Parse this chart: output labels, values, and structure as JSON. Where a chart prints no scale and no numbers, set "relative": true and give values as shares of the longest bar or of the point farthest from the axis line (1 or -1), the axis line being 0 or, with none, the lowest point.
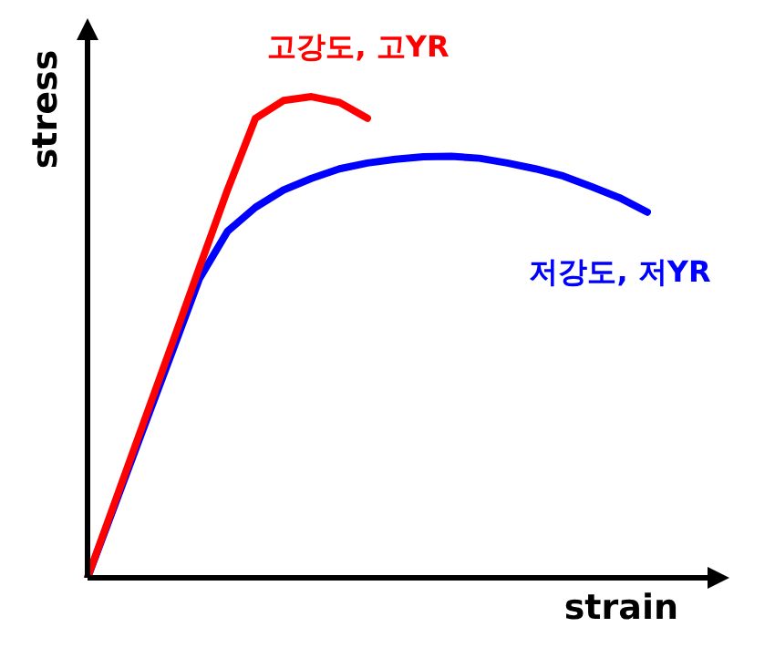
{
  "chart_data": {
    "type": "line",
    "relative": true,
    "xlabel": "strain",
    "ylabel": "stress",
    "grid": false,
    "legend": false,
    "marker": "none",
    "line_style": "solid",
    "categories": [
      null,
      null,
      null,
      null,
      null,
      null,
      null,
      null,
      null,
      null,
      null,
      null,
      null,
      null,
      null,
      null,
      null,
      null,
      null,
      null,
      null
    ],
    "series": [
      {
        "name": "고강도, 고YR",
        "color": "#ff0000",
        "values": [
          0,
          0.161,
          0.322,
          0.483,
          0.645,
          0.806,
          0.955,
          0.992,
          1,
          0.988,
          0.955,
          null,
          null,
          null,
          null,
          null,
          null,
          null,
          null,
          null,
          null
        ]
      },
      {
        "name": "저강도, 저YR",
        "color": "#0000ff",
        "values": [
          0,
          0.155,
          0.311,
          0.466,
          0.622,
          0.72,
          0.77,
          0.806,
          0.83,
          0.85,
          0.862,
          0.87,
          0.875,
          0.876,
          0.872,
          0.862,
          0.85,
          0.835,
          0.813,
          0.79,
          0.76
        ]
      }
    ]
  }
}
